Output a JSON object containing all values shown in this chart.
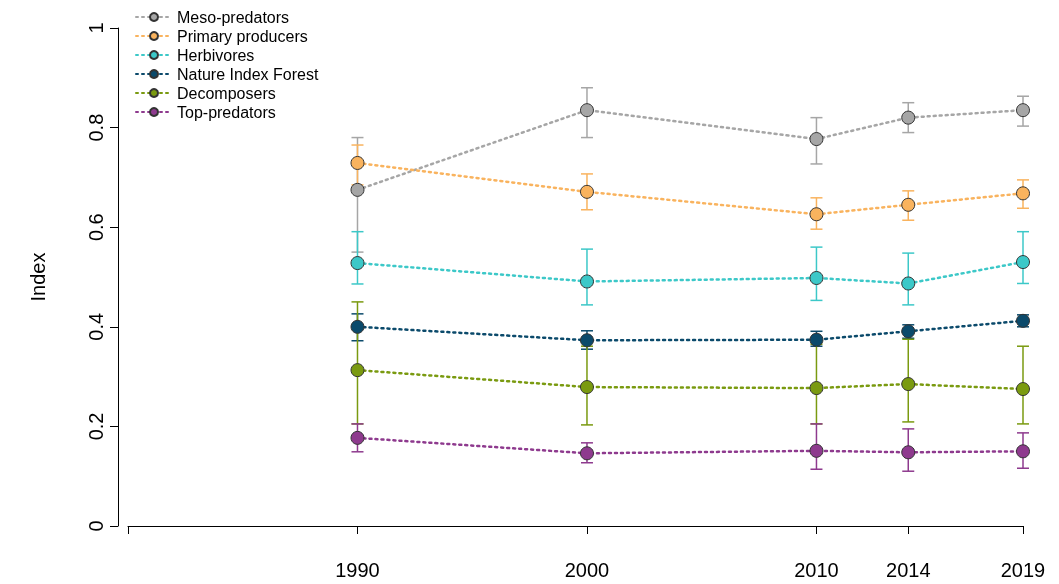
{
  "chart_data": {
    "type": "line",
    "ylabel": "Index",
    "x": [
      1990,
      2000,
      2010,
      2014,
      2019
    ],
    "xlim": [
      1980,
      2019
    ],
    "xticks": [
      {
        "value": 1980,
        "label": null
      },
      1990,
      2000,
      2010,
      2014,
      2019
    ],
    "ylim": [
      0,
      1
    ],
    "yticks": [
      0,
      0.2,
      0.4,
      0.6,
      0.8,
      1
    ],
    "grid": false,
    "legend": "top left",
    "marker": "circle",
    "line_style": "dotted",
    "series": [
      {
        "name": "Meso-predators",
        "color": "#a6a6a6",
        "values": [
          0.675,
          0.835,
          0.777,
          0.82,
          0.835
        ],
        "errors": [
          [
            0.55,
            0.78
          ],
          [
            0.78,
            0.88
          ],
          [
            0.727,
            0.82
          ],
          [
            0.79,
            0.85
          ],
          [
            0.803,
            0.863
          ]
        ]
      },
      {
        "name": "Primary producers",
        "color": "#f9b35e",
        "values": [
          0.729,
          0.671,
          0.626,
          0.645,
          0.668
        ],
        "errors": [
          [
            0.685,
            0.765
          ],
          [
            0.635,
            0.707
          ],
          [
            0.596,
            0.659
          ],
          [
            0.614,
            0.673
          ],
          [
            0.638,
            0.695
          ]
        ]
      },
      {
        "name": "Herbivores",
        "color": "#3cc8c8",
        "values": [
          0.528,
          0.491,
          0.498,
          0.487,
          0.53
        ],
        "errors": [
          [
            0.486,
            0.591
          ],
          [
            0.444,
            0.556
          ],
          [
            0.453,
            0.56
          ],
          [
            0.444,
            0.548
          ],
          [
            0.487,
            0.591
          ]
        ]
      },
      {
        "name": "Nature Index Forest",
        "color": "#0b4a6b",
        "values": [
          0.4,
          0.373,
          0.374,
          0.391,
          0.412
        ],
        "errors": [
          [
            0.372,
            0.426
          ],
          [
            0.355,
            0.392
          ],
          [
            0.361,
            0.391
          ],
          [
            0.377,
            0.404
          ],
          [
            0.4,
            0.424
          ]
        ]
      },
      {
        "name": "Decomposers",
        "color": "#7a9a10",
        "values": [
          0.313,
          0.279,
          0.277,
          0.285,
          0.275
        ],
        "errors": [
          [
            0.205,
            0.45
          ],
          [
            0.203,
            0.361
          ],
          [
            0.205,
            0.365
          ],
          [
            0.209,
            0.375
          ],
          [
            0.205,
            0.361
          ]
        ]
      },
      {
        "name": "Top-predators",
        "color": "#8e3a8e",
        "values": [
          0.177,
          0.146,
          0.151,
          0.148,
          0.15
        ],
        "errors": [
          [
            0.149,
            0.205
          ],
          [
            0.127,
            0.167
          ],
          [
            0.114,
            0.205
          ],
          [
            0.11,
            0.195
          ],
          [
            0.116,
            0.187
          ]
        ]
      }
    ]
  }
}
